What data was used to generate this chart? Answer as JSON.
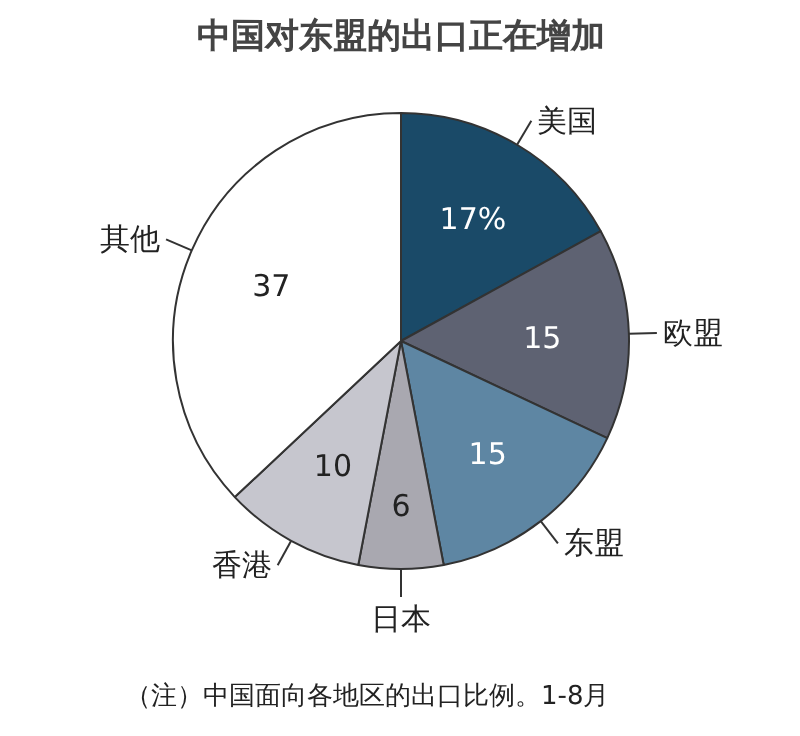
{
  "chart_data": {
    "type": "pie",
    "title": "中国对东盟的出口正在增加",
    "categories": [
      "美国",
      "欧盟",
      "东盟",
      "日本",
      "香港",
      "其他"
    ],
    "values": [
      17,
      15,
      15,
      6,
      10,
      37
    ],
    "colors": [
      "#1a4a68",
      "#5e6272",
      "#5e86a3",
      "#a9a8b0",
      "#c6c6ce",
      "#ffffff"
    ],
    "value_labels": [
      "17%",
      "15",
      "15",
      "6",
      "10",
      "37"
    ],
    "annotations": [
      "（注）中国面向各地区的出口比例。1-8月"
    ]
  }
}
